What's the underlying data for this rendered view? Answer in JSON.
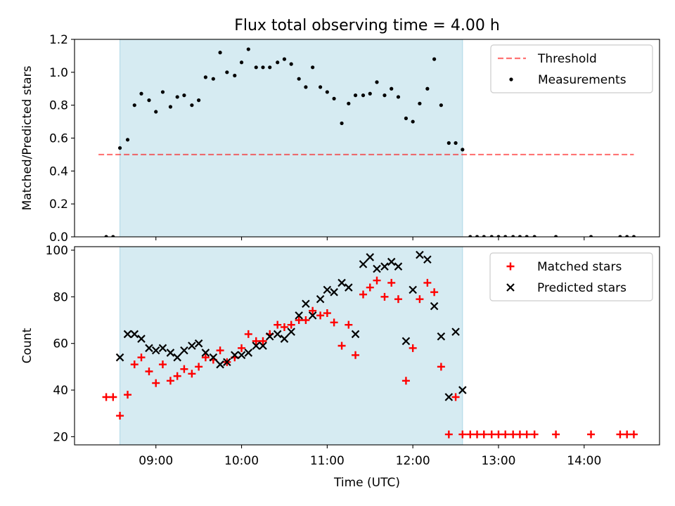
{
  "title": "Flux total observing time = 4.00 h",
  "xlabel": "Time (UTC)",
  "colors": {
    "span": "#add8e6",
    "threshold": "#ff0000",
    "measurements": "#000000",
    "matched": "#ff0000",
    "predicted": "#000000"
  },
  "chart_data": [
    {
      "type": "scatter",
      "ylabel": "Matched/Predicted stars",
      "x_unit": "UTC hour",
      "xlim": [
        8.05,
        14.88
      ],
      "ylim": [
        0,
        1.2
      ],
      "yticks": [
        0.0,
        0.2,
        0.4,
        0.6,
        0.8,
        1.0,
        1.2
      ],
      "ytick_labels": [
        "0.0",
        "0.2",
        "0.4",
        "0.6",
        "0.8",
        "1.0",
        "1.2"
      ],
      "xticks": [
        9,
        10,
        11,
        12,
        13,
        14
      ],
      "observing_span": [
        8.58,
        12.58
      ],
      "legend": {
        "position": "top-right",
        "entries": [
          "Threshold",
          "Measurements"
        ]
      },
      "threshold": {
        "name": "Threshold",
        "value": 0.5,
        "x_range": [
          8.33,
          14.58
        ]
      },
      "series": [
        {
          "name": "Measurements",
          "marker": "dot",
          "x": [
            8.42,
            8.5,
            8.58,
            8.67,
            8.75,
            8.83,
            8.92,
            9.0,
            9.08,
            9.17,
            9.25,
            9.33,
            9.42,
            9.5,
            9.58,
            9.67,
            9.75,
            9.83,
            9.92,
            10.0,
            10.08,
            10.17,
            10.25,
            10.33,
            10.42,
            10.5,
            10.58,
            10.67,
            10.75,
            10.83,
            10.92,
            11.0,
            11.08,
            11.17,
            11.25,
            11.33,
            11.42,
            11.5,
            11.58,
            11.67,
            11.75,
            11.83,
            11.92,
            12.0,
            12.08,
            12.17,
            12.25,
            12.33,
            12.42,
            12.5,
            12.58,
            12.67,
            12.75,
            12.83,
            12.92,
            13.0,
            13.08,
            13.17,
            13.25,
            13.33,
            13.42,
            13.67,
            14.08,
            14.42,
            14.5,
            14.58
          ],
          "y": [
            0.0,
            0.0,
            0.54,
            0.59,
            0.8,
            0.87,
            0.83,
            0.76,
            0.88,
            0.79,
            0.85,
            0.86,
            0.8,
            0.83,
            0.97,
            0.96,
            1.12,
            1.0,
            0.98,
            1.06,
            1.14,
            1.03,
            1.03,
            1.03,
            1.06,
            1.08,
            1.05,
            0.96,
            0.91,
            1.03,
            0.91,
            0.88,
            0.84,
            0.69,
            0.81,
            0.86,
            0.86,
            0.87,
            0.94,
            0.86,
            0.9,
            0.85,
            0.72,
            0.7,
            0.81,
            0.9,
            1.08,
            0.8,
            0.57,
            0.57,
            0.53,
            0.0,
            0.0,
            0.0,
            0.0,
            0.0,
            0.0,
            0.0,
            0.0,
            0.0,
            0.0,
            0.0,
            0.0,
            0.0,
            0.0,
            0.0
          ]
        }
      ]
    },
    {
      "type": "scatter",
      "ylabel": "Count",
      "x_unit": "UTC hour",
      "xlim": [
        8.05,
        14.88
      ],
      "ylim": [
        16.5,
        101.5
      ],
      "yticks": [
        20,
        40,
        60,
        80,
        100
      ],
      "ytick_labels": [
        "20",
        "40",
        "60",
        "80",
        "100"
      ],
      "xticks": [
        9,
        10,
        11,
        12,
        13,
        14
      ],
      "xtick_labels": [
        "09:00",
        "10:00",
        "11:00",
        "12:00",
        "13:00",
        "14:00"
      ],
      "observing_span": [
        8.58,
        12.58
      ],
      "legend": {
        "position": "top-right",
        "entries": [
          "Matched stars",
          "Predicted stars"
        ]
      },
      "series": [
        {
          "name": "Matched stars",
          "marker": "plus",
          "x": [
            8.42,
            8.5,
            8.58,
            8.67,
            8.75,
            8.83,
            8.92,
            9.0,
            9.08,
            9.17,
            9.25,
            9.33,
            9.42,
            9.5,
            9.58,
            9.67,
            9.75,
            9.83,
            9.92,
            10.0,
            10.08,
            10.17,
            10.25,
            10.33,
            10.42,
            10.5,
            10.58,
            10.67,
            10.75,
            10.83,
            10.92,
            11.0,
            11.08,
            11.17,
            11.25,
            11.33,
            11.42,
            11.5,
            11.58,
            11.67,
            11.75,
            11.83,
            11.92,
            12.0,
            12.08,
            12.17,
            12.25,
            12.33,
            12.42,
            12.5,
            12.58,
            12.67,
            12.75,
            12.83,
            12.92,
            13.0,
            13.08,
            13.17,
            13.25,
            13.33,
            13.42,
            13.67,
            14.08,
            14.42,
            14.5,
            14.58
          ],
          "y": [
            37,
            37,
            29,
            38,
            51,
            54,
            48,
            43,
            51,
            44,
            46,
            49,
            47,
            50,
            54,
            53,
            57,
            52,
            54,
            58,
            64,
            61,
            61,
            64,
            68,
            67,
            68,
            70,
            70,
            74,
            72,
            73,
            69,
            59,
            68,
            55,
            81,
            84,
            87,
            80,
            86,
            79,
            44,
            58,
            79,
            86,
            82,
            50,
            21,
            37,
            21,
            21,
            21,
            21,
            21,
            21,
            21,
            21,
            21,
            21,
            21,
            21,
            21,
            21,
            21,
            21
          ]
        },
        {
          "name": "Predicted stars",
          "marker": "x",
          "x": [
            8.58,
            8.67,
            8.75,
            8.83,
            8.92,
            9.0,
            9.08,
            9.17,
            9.25,
            9.33,
            9.42,
            9.5,
            9.58,
            9.67,
            9.75,
            9.83,
            9.92,
            10.0,
            10.08,
            10.17,
            10.25,
            10.33,
            10.42,
            10.5,
            10.58,
            10.67,
            10.75,
            10.83,
            10.92,
            11.0,
            11.08,
            11.17,
            11.25,
            11.33,
            11.42,
            11.5,
            11.58,
            11.67,
            11.75,
            11.83,
            11.92,
            12.0,
            12.08,
            12.17,
            12.25,
            12.33,
            12.42,
            12.5,
            12.58
          ],
          "y": [
            54,
            64,
            64,
            62,
            58,
            57,
            58,
            56,
            54,
            57,
            59,
            60,
            56,
            54,
            51,
            52,
            55,
            55,
            56,
            59,
            59,
            63,
            64,
            62,
            65,
            72,
            77,
            72,
            79,
            83,
            82,
            86,
            84,
            64,
            94,
            97,
            92,
            93,
            95,
            93,
            61,
            83,
            98,
            96,
            76,
            63,
            37,
            65,
            40
          ]
        }
      ]
    }
  ]
}
